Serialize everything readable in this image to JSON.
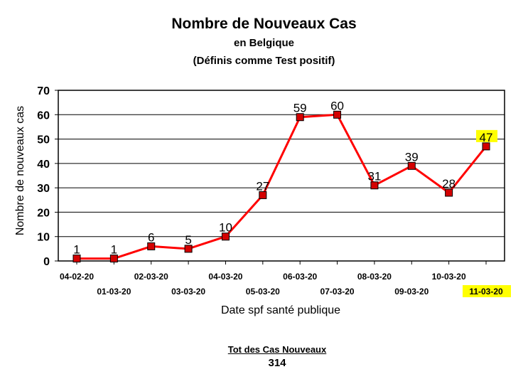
{
  "chart_data": {
    "type": "line",
    "title": "Nombre de Nouveaux Cas",
    "subtitle": "en Belgique",
    "subtitle2": "(Définis comme Test positif)",
    "xlabel": "Date spf santé publique",
    "ylabel": "Nombre de nouveaux cas",
    "ylim": [
      0,
      70
    ],
    "yticks": [
      0,
      10,
      20,
      30,
      40,
      50,
      60,
      70
    ],
    "grid": true,
    "categories": [
      "04-02-20",
      "01-03-20",
      "02-03-20",
      "03-03-20",
      "04-03-20",
      "05-03-20",
      "06-03-20",
      "07-03-20",
      "08-03-20",
      "09-03-20",
      "10-03-20",
      "11-03-20"
    ],
    "values": [
      1,
      1,
      6,
      5,
      10,
      27,
      59,
      60,
      31,
      39,
      28,
      47
    ],
    "highlighted_category": "11-03-20",
    "highlighted_value": 47,
    "line_color": "#ff0000",
    "marker_color": "#d40000",
    "highlight_color": "#ffff00"
  },
  "total": {
    "label": "Tot des Cas Nouveaux",
    "value": "314"
  }
}
